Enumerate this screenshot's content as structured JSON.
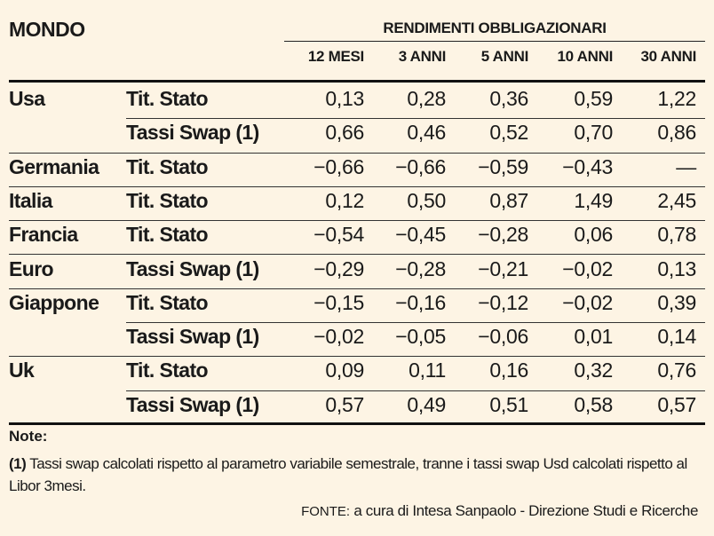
{
  "title": "MONDO",
  "group_header": "RENDIMENTI OBBLIGAZIONARI",
  "columns": [
    "12 MESI",
    "3 ANNI",
    "5 ANNI",
    "10 ANNI",
    "30 ANNI"
  ],
  "rows": [
    {
      "country": "Usa",
      "type": "Tit. Stato",
      "values": [
        "0,13",
        "0,28",
        "0,36",
        "0,59",
        "1,22"
      ]
    },
    {
      "country": "",
      "type": "Tassi Swap (1)",
      "values": [
        "0,66",
        "0,46",
        "0,52",
        "0,70",
        "0,86"
      ]
    },
    {
      "country": "Germania",
      "type": "Tit. Stato",
      "values": [
        "−0,66",
        "−0,66",
        "−0,59",
        "−0,43",
        "—"
      ]
    },
    {
      "country": "Italia",
      "type": "Tit. Stato",
      "values": [
        "0,12",
        "0,50",
        "0,87",
        "1,49",
        "2,45"
      ]
    },
    {
      "country": "Francia",
      "type": "Tit. Stato",
      "values": [
        "−0,54",
        "−0,45",
        "−0,28",
        "0,06",
        "0,78"
      ]
    },
    {
      "country": "Euro",
      "type": "Tassi Swap (1)",
      "values": [
        "−0,29",
        "−0,28",
        "−0,21",
        "−0,02",
        "0,13"
      ]
    },
    {
      "country": "Giappone",
      "type": "Tit. Stato",
      "values": [
        "−0,15",
        "−0,16",
        "−0,12",
        "−0,02",
        "0,39"
      ]
    },
    {
      "country": "",
      "type": "Tassi Swap (1)",
      "values": [
        "−0,02",
        "−0,05",
        "−0,06",
        "0,01",
        "0,14"
      ]
    },
    {
      "country": "Uk",
      "type": "Tit. Stato",
      "values": [
        "0,09",
        "0,11",
        "0,16",
        "0,32",
        "0,76"
      ]
    },
    {
      "country": "",
      "type": "Tassi Swap (1)",
      "values": [
        "0,57",
        "0,49",
        "0,51",
        "0,58",
        "0,57"
      ]
    }
  ],
  "notes": {
    "title": "Note:",
    "marker": "(1)",
    "text": "Tassi swap calcolati rispetto al parametro variabile semestrale, tranne i tassi swap Usd calcolati rispetto al Libor 3mesi."
  },
  "source": {
    "label": "FONTE:",
    "text": "a cura di Intesa Sanpaolo - Direzione Studi e Ricerche"
  }
}
